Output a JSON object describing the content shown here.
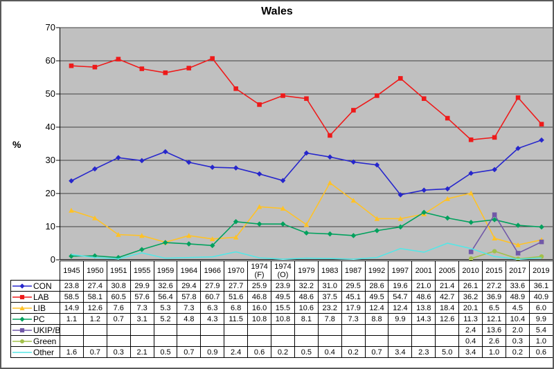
{
  "chart": {
    "title": "Wales",
    "ylabel": "%"
  },
  "chart_data": {
    "type": "line",
    "title": "Wales",
    "xlabel": "",
    "ylabel": "%",
    "ylim": [
      0,
      70
    ],
    "ytick_step": 10,
    "grid": "horizontal",
    "plot_bg": "#c0c0c0",
    "grid_color": "#3f3f3f",
    "axis_color": "#000000",
    "legend_position": "table-left",
    "categories": [
      "1945",
      "1950",
      "1951",
      "1955",
      "1959",
      "1964",
      "1966",
      "1970",
      "1974\n(F)",
      "1974\n(O)",
      "1979",
      "1983",
      "1987",
      "1992",
      "1997",
      "2001",
      "2005",
      "2010",
      "2015",
      "2017",
      "2019"
    ],
    "series": [
      {
        "name": "CON",
        "color": "#2626cc",
        "marker": "diamond",
        "values": [
          23.8,
          27.4,
          30.8,
          29.9,
          32.6,
          29.4,
          27.9,
          27.7,
          25.9,
          23.9,
          32.2,
          31.0,
          29.5,
          28.6,
          19.6,
          21.0,
          21.4,
          26.1,
          27.2,
          33.6,
          36.1
        ]
      },
      {
        "name": "LAB",
        "color": "#ee1a1a",
        "marker": "square",
        "values": [
          58.5,
          58.1,
          60.5,
          57.6,
          56.4,
          57.8,
          60.7,
          51.6,
          46.8,
          49.5,
          48.6,
          37.5,
          45.1,
          49.5,
          54.7,
          48.6,
          42.7,
          36.2,
          36.9,
          48.9,
          40.9
        ]
      },
      {
        "name": "LIB",
        "color": "#ffc226",
        "marker": "triangle",
        "values": [
          14.9,
          12.6,
          7.6,
          7.3,
          5.3,
          7.3,
          6.3,
          6.8,
          16.0,
          15.5,
          10.6,
          23.2,
          17.9,
          12.4,
          12.4,
          13.8,
          18.4,
          20.1,
          6.5,
          4.5,
          6.0
        ]
      },
      {
        "name": "PC",
        "color": "#00a15d",
        "marker": "diamond",
        "values": [
          1.1,
          1.2,
          0.7,
          3.1,
          5.2,
          4.8,
          4.3,
          11.5,
          10.8,
          10.8,
          8.1,
          7.8,
          7.3,
          8.8,
          9.9,
          14.3,
          12.6,
          11.3,
          12.1,
          10.4,
          9.9
        ]
      },
      {
        "name": "UKIP/Br",
        "color": "#7158a8",
        "marker": "square",
        "values": [
          null,
          null,
          null,
          null,
          null,
          null,
          null,
          null,
          null,
          null,
          null,
          null,
          null,
          null,
          null,
          null,
          null,
          2.4,
          13.6,
          2.0,
          5.4
        ]
      },
      {
        "name": "Green",
        "color": "#a2c04a",
        "marker": "circle",
        "values": [
          null,
          null,
          null,
          null,
          null,
          null,
          null,
          null,
          null,
          null,
          null,
          null,
          null,
          null,
          null,
          null,
          null,
          0.4,
          2.6,
          0.3,
          1.0
        ]
      },
      {
        "name": "Other",
        "color": "#55e6e6",
        "marker": "none",
        "values": [
          1.6,
          0.7,
          0.3,
          2.1,
          0.5,
          0.7,
          0.9,
          2.4,
          0.6,
          0.2,
          0.5,
          0.4,
          0.2,
          0.7,
          3.4,
          2.3,
          5.0,
          3.4,
          1.0,
          0.2,
          0.6
        ]
      }
    ]
  }
}
